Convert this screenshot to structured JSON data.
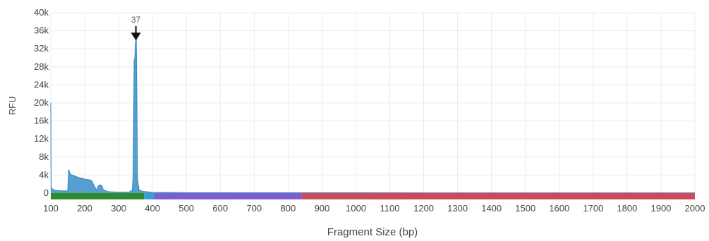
{
  "chart_data": {
    "type": "line",
    "xlabel": "Fragment Size (bp)",
    "ylabel": "RFU",
    "xlim": [
      100,
      2000
    ],
    "ylim": [
      0,
      40000
    ],
    "x_ticks": [
      100,
      200,
      300,
      400,
      500,
      600,
      700,
      800,
      900,
      1000,
      1100,
      1200,
      1300,
      1400,
      1500,
      1600,
      1700,
      1800,
      1900,
      2000
    ],
    "x_tick_labels": [
      "100",
      "200",
      "300",
      "400",
      "500",
      "600",
      "700",
      "800",
      "900",
      "1000",
      "1100",
      "1200",
      "1300",
      "1400",
      "1500",
      "1600",
      "1700",
      "1800",
      "1900",
      "2000"
    ],
    "y_ticks": [
      0,
      4000,
      8000,
      12000,
      16000,
      20000,
      24000,
      28000,
      32000,
      36000,
      40000
    ],
    "y_tick_labels": [
      "0",
      "4k",
      "8k",
      "12k",
      "16k",
      "20k",
      "24k",
      "28k",
      "32k",
      "36k",
      "40k"
    ],
    "grid": true,
    "series": [
      {
        "color": "#3a8ec6",
        "points": [
          [
            100,
            20000
          ],
          [
            101,
            1200
          ],
          [
            110,
            600
          ],
          [
            130,
            500
          ],
          [
            150,
            500
          ],
          [
            153,
            5200
          ],
          [
            156,
            4400
          ],
          [
            160,
            4100
          ],
          [
            170,
            3800
          ],
          [
            180,
            3500
          ],
          [
            190,
            3300
          ],
          [
            200,
            3100
          ],
          [
            210,
            3000
          ],
          [
            220,
            2800
          ],
          [
            230,
            1300
          ],
          [
            235,
            600
          ],
          [
            240,
            1600
          ],
          [
            245,
            1800
          ],
          [
            250,
            1700
          ],
          [
            255,
            700
          ],
          [
            270,
            300
          ],
          [
            300,
            200
          ],
          [
            330,
            200
          ],
          [
            340,
            600
          ],
          [
            343,
            3500
          ],
          [
            346,
            29500
          ],
          [
            348,
            30000
          ],
          [
            350,
            33500
          ],
          [
            352,
            34000
          ],
          [
            354,
            20000
          ],
          [
            356,
            3000
          ],
          [
            360,
            700
          ],
          [
            370,
            400
          ],
          [
            400,
            150
          ],
          [
            500,
            80
          ],
          [
            800,
            60
          ],
          [
            1200,
            50
          ],
          [
            2000,
            40
          ]
        ]
      }
    ],
    "annotations": [
      {
        "x": 351,
        "y": 34000,
        "label": "37"
      }
    ],
    "ladder_bands": [
      {
        "from": 100,
        "to": 375,
        "color": "#2e8b2e"
      },
      {
        "from": 375,
        "to": 405,
        "color": "#3a9fd0"
      },
      {
        "from": 405,
        "to": 840,
        "color": "#7b5fcf"
      },
      {
        "from": 840,
        "to": 2000,
        "color": "#cc4a5c"
      }
    ]
  }
}
